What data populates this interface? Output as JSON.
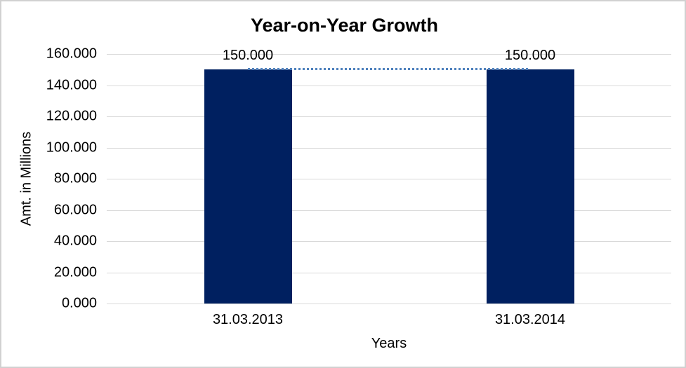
{
  "window": {
    "background": "#ffffff",
    "border_color": "#d1d1d1"
  },
  "chart_data": {
    "type": "bar",
    "title": "Year-on-Year Growth",
    "xlabel": "Years",
    "ylabel": "Amt. in Millions",
    "categories": [
      "31.03.2013",
      "31.03.2014"
    ],
    "values": [
      150000,
      150000
    ],
    "data_labels": [
      "150.000",
      "150.000"
    ],
    "ylim": [
      0,
      160000
    ],
    "ytick_step": 20000,
    "ytick_labels": [
      "0.000",
      "20.000",
      "40.000",
      "60.000",
      "80.000",
      "100.000",
      "120.000",
      "140.000",
      "160.000"
    ],
    "grid": true,
    "legend_position": "none",
    "bar_color": "#002060",
    "connector_style": "dotted",
    "connector_color": "#4f81bd",
    "gridline_color": "#d9d9d9",
    "axis_line_color": "#d9d9d9",
    "text_color": "#000000"
  }
}
